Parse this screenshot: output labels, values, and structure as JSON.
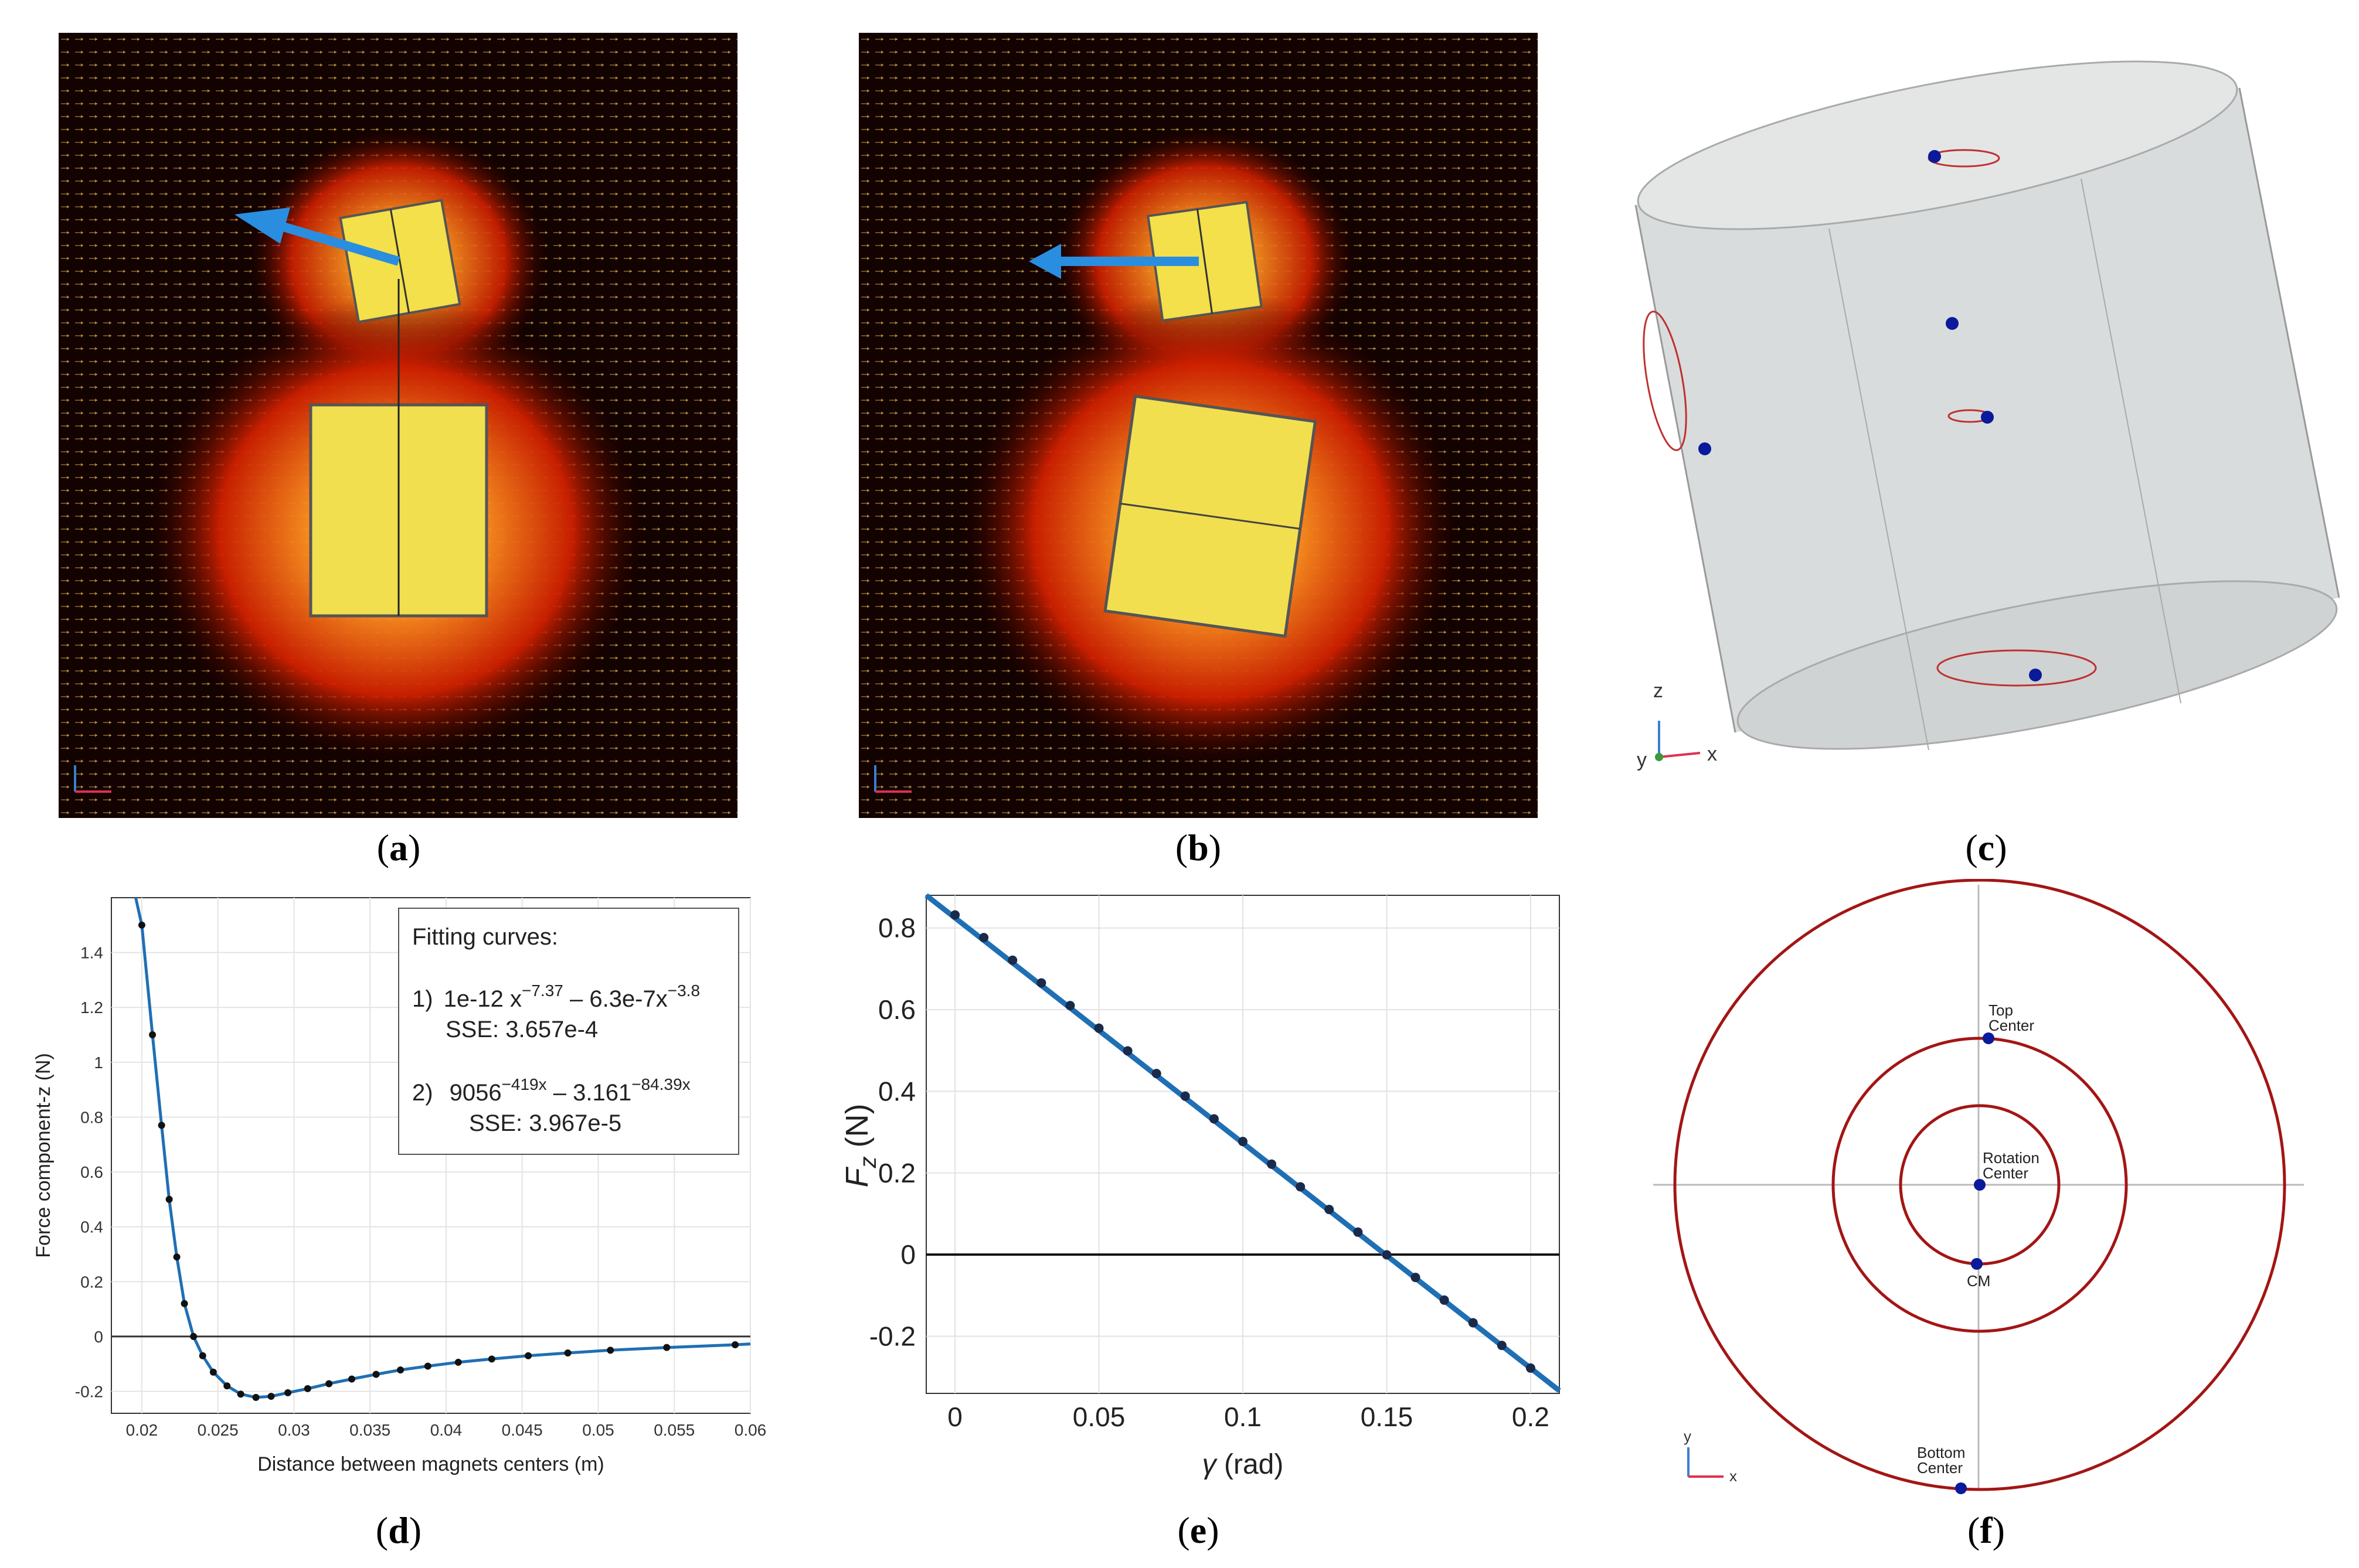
{
  "panel_labels": [
    "(",
    "a",
    ")",
    "(",
    "b",
    ")",
    "(",
    "c",
    ")",
    "(",
    "d",
    ")",
    "(",
    "e",
    ")",
    "(",
    "f",
    ")"
  ],
  "labels": {
    "a": "a",
    "b": "b",
    "c": "c",
    "d": "d",
    "e": "e",
    "f": "f"
  },
  "colors": {
    "field_bg": "#120200",
    "arrow_blue": "#2a8ee0",
    "curve": "#1f6fb4",
    "ring": "#a31515",
    "point": "#0a1a9a",
    "cylinder": "#d9dcdc"
  },
  "panel_c": {
    "axes": {
      "z": "z",
      "y": "y",
      "x": "x"
    }
  },
  "panel_f": {
    "points": [
      "Top Center",
      "Rotation Center",
      "CM",
      "Bottom Center"
    ],
    "labels": {
      "top": [
        "Top",
        "Center"
      ],
      "rot": [
        "Rotation",
        "Center"
      ],
      "cm": "CM",
      "bottom": [
        "Bottom",
        "Center"
      ]
    },
    "axes": {
      "y": "y",
      "x": "x"
    }
  },
  "chart_data": [
    {
      "id": "d",
      "type": "line",
      "xlabel": "Distance between magnets centers (m)",
      "ylabel": "Force component-z (N)",
      "xlim": [
        0.018,
        0.06
      ],
      "ylim": [
        -0.28,
        1.6
      ],
      "xticks": [
        "0.02",
        "0.025",
        "0.03",
        "0.035",
        "0.04",
        "0.045",
        "0.05",
        "0.055",
        "0.06"
      ],
      "yticks": [
        "-0.2",
        "0",
        "0.2",
        "0.4",
        "0.6",
        "0.8",
        "1",
        "1.2",
        "1.4"
      ],
      "xtick_values": [
        0.02,
        0.025,
        0.03,
        0.035,
        0.04,
        0.045,
        0.05,
        0.055,
        0.06
      ],
      "ytick_values": [
        -0.2,
        0,
        0.2,
        0.4,
        0.6,
        0.8,
        1.0,
        1.2,
        1.4
      ],
      "points_x": [
        0.02,
        0.0207,
        0.0213,
        0.0218,
        0.0223,
        0.0228,
        0.0234,
        0.024,
        0.0247,
        0.0256,
        0.0265,
        0.0275,
        0.0285,
        0.0296,
        0.0309,
        0.0323,
        0.0338,
        0.0354,
        0.037,
        0.0388,
        0.0408,
        0.043,
        0.0454,
        0.048,
        0.0508,
        0.0545,
        0.059
      ],
      "points_y": [
        1.5,
        1.1,
        0.77,
        0.5,
        0.29,
        0.12,
        0.0,
        -0.07,
        -0.13,
        -0.18,
        -0.21,
        -0.222,
        -0.218,
        -0.205,
        -0.19,
        -0.172,
        -0.155,
        -0.138,
        -0.122,
        -0.108,
        -0.094,
        -0.082,
        -0.07,
        -0.06,
        -0.05,
        -0.04,
        -0.03
      ],
      "series": [
        {
          "name": "Force component-z",
          "color": "#1f6fb4"
        }
      ],
      "legend": {
        "title": "Fitting curves:",
        "fit1_prefix": "1)",
        "fit1_a": "1e-12 x",
        "fit1_a_exp": "−7.37",
        "fit1_b": " – 6.3e-7x",
        "fit1_b_exp": "−3.8",
        "fit1_sse": "SSE: 3.657e-4",
        "fit2_prefix": "2)",
        "fit2_a": "9056",
        "fit2_a_exp": "−419x",
        "fit2_b": " – 3.161",
        "fit2_b_exp": "−84.39x",
        "fit2_sse": "SSE: 3.967e-5"
      }
    },
    {
      "id": "e",
      "type": "line",
      "xlabel_sym": "γ",
      "xlabel_unit": " (rad)",
      "ylabel_sym": "F",
      "ylabel_sub": "z",
      "ylabel_unit": " (N)",
      "xlim": [
        -0.01,
        0.21
      ],
      "ylim": [
        -0.34,
        0.88
      ],
      "xticks": [
        "0",
        "0.05",
        "0.1",
        "0.15",
        "0.2"
      ],
      "yticks": [
        "-0.2",
        "0",
        "0.2",
        "0.4",
        "0.6",
        "0.8"
      ],
      "xtick_values": [
        0,
        0.05,
        0.1,
        0.15,
        0.2
      ],
      "ytick_values": [
        -0.2,
        0,
        0.2,
        0.4,
        0.6,
        0.8
      ],
      "line": {
        "slope": -5.55,
        "intercept": 0.832
      },
      "points_x": [
        0,
        0.01,
        0.02,
        0.03,
        0.04,
        0.05,
        0.06,
        0.07,
        0.08,
        0.09,
        0.1,
        0.11,
        0.12,
        0.13,
        0.14,
        0.15,
        0.16,
        0.17,
        0.18,
        0.19,
        0.2
      ],
      "series": [
        {
          "name": "Fz",
          "color": "#1f6fb4"
        }
      ]
    }
  ]
}
